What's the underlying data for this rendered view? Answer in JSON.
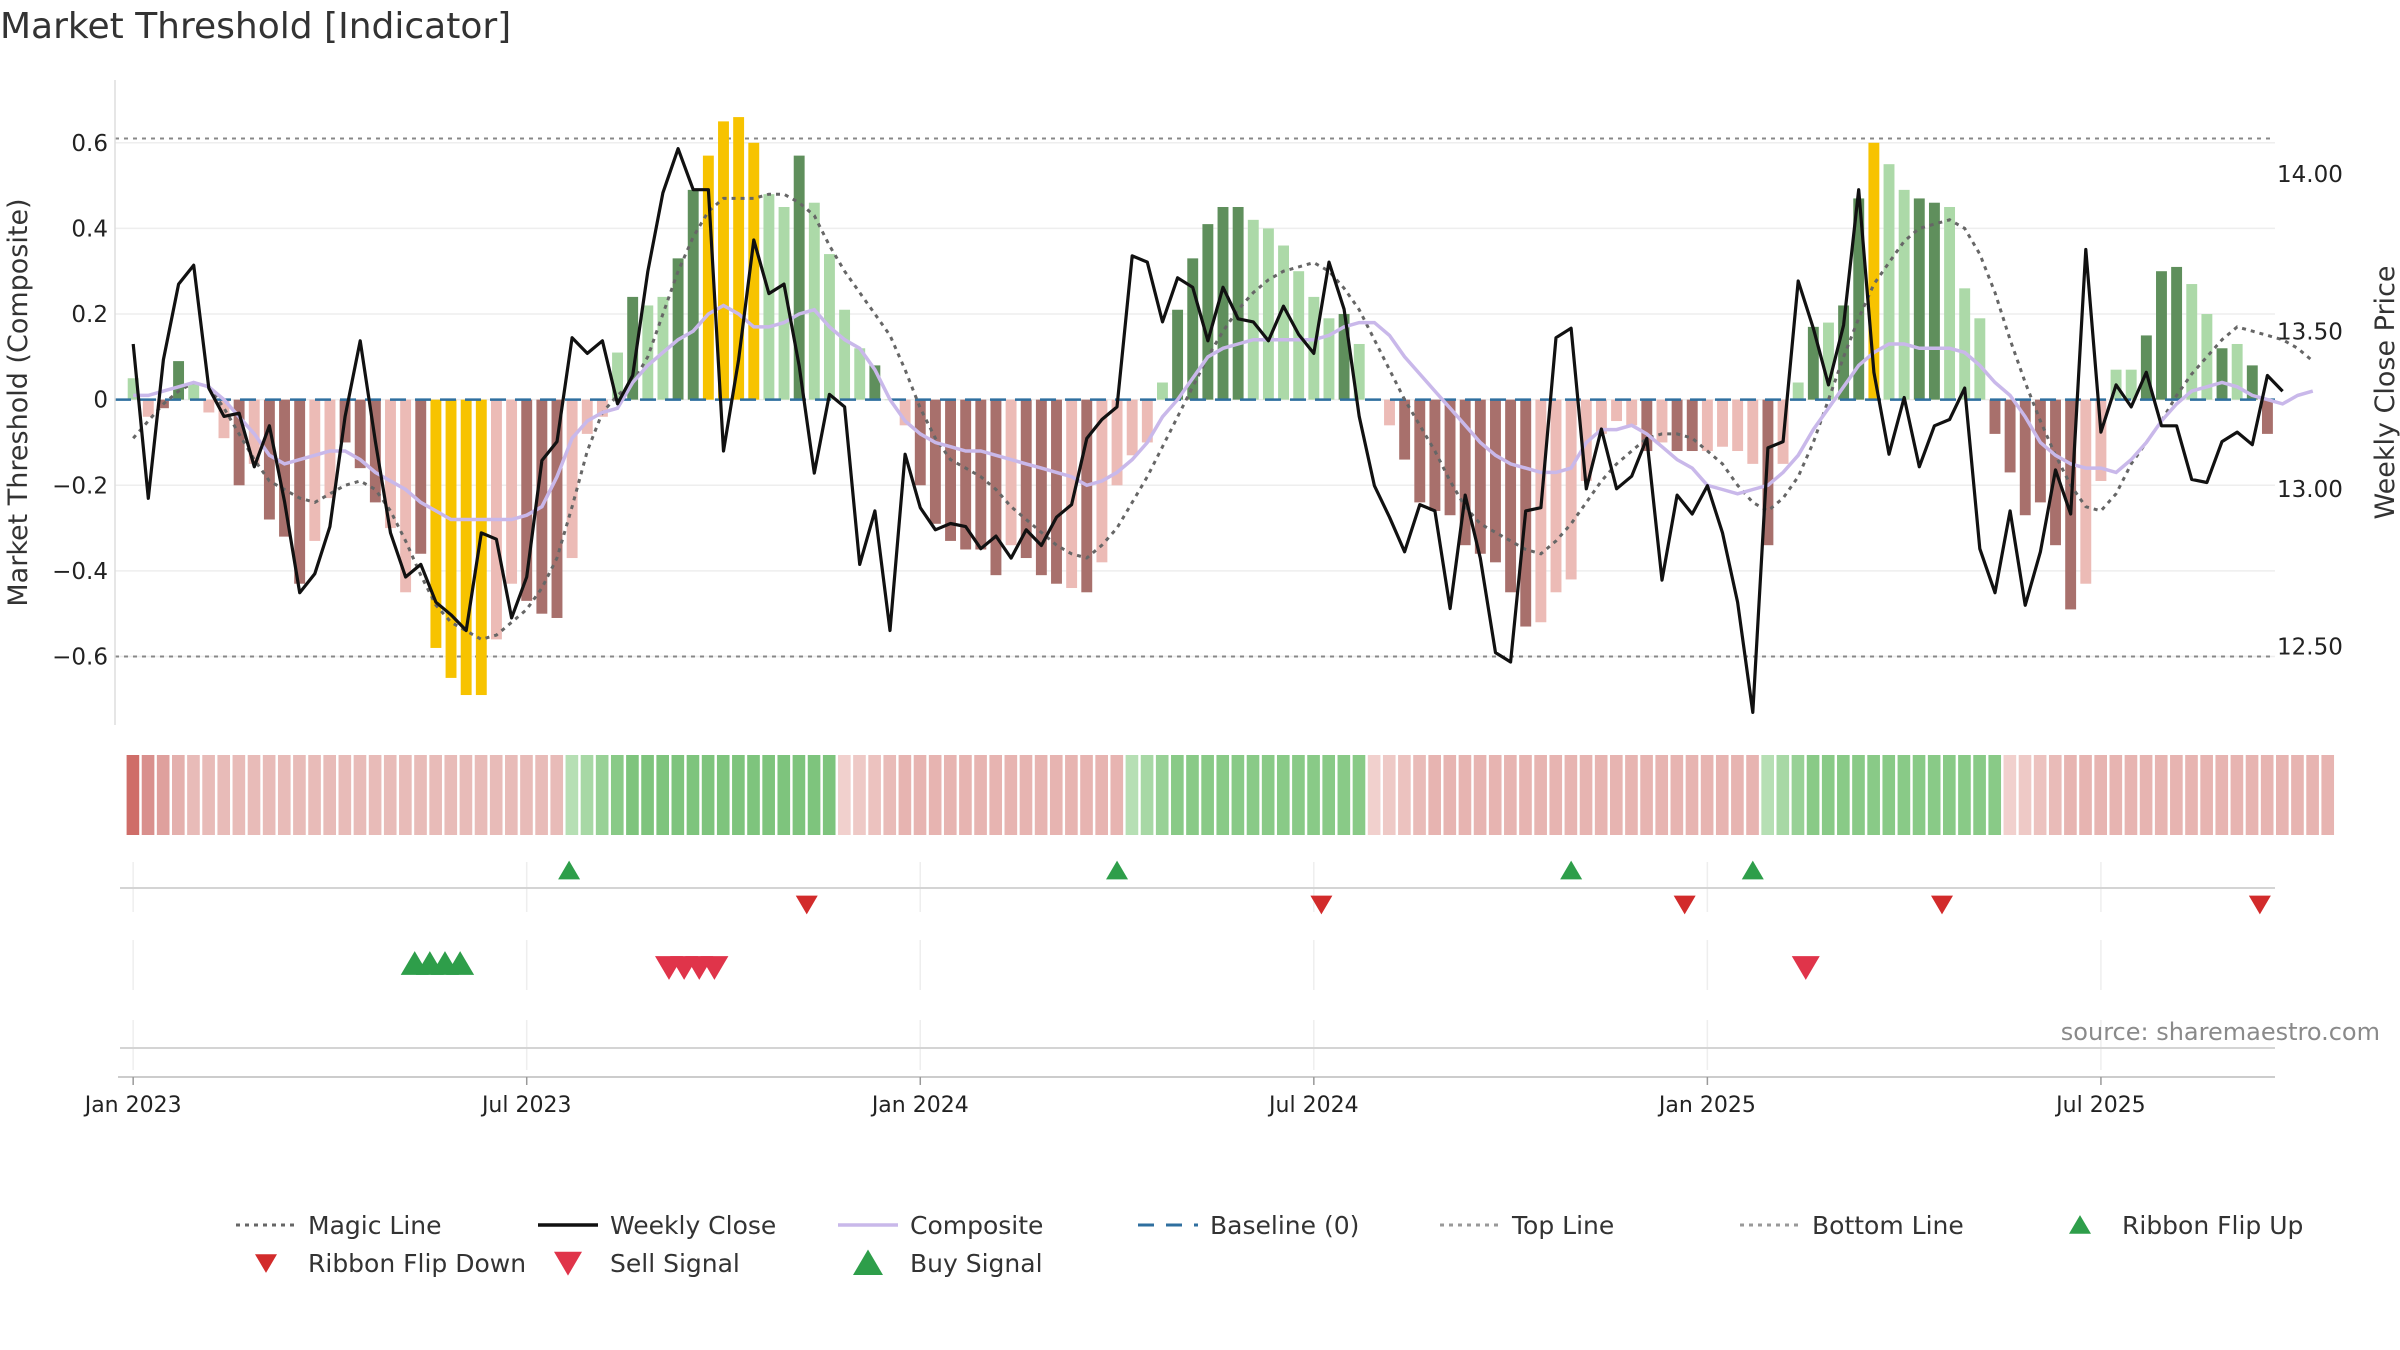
{
  "title": "Market Threshold [Indicator]",
  "source_note": "source: sharemaestro.com",
  "colors": {
    "magic": "#666666",
    "close": "#111111",
    "composite": "#c9b8ea",
    "baseline": "#2f6f9f",
    "threshold": "#888888",
    "flip_up": "#2e9e4a",
    "flip_down": "#d22b2b",
    "sell": "#e0344a",
    "buy": "#2e9e4a",
    "extreme_bar": "#f7c300",
    "strong_pos": "#5f8f5c",
    "weak_pos": "#acd9a8",
    "strong_neg": "#a8706c",
    "weak_neg": "#ecbbb6"
  },
  "legend": [
    {
      "label": "Magic Line",
      "type": "dotted",
      "color": "#666666"
    },
    {
      "label": "Weekly Close",
      "type": "solid",
      "color": "#111111"
    },
    {
      "label": "Composite",
      "type": "solid",
      "color": "#c9b8ea"
    },
    {
      "label": "Baseline (0)",
      "type": "dashed",
      "color": "#2f6f9f"
    },
    {
      "label": "Top Line",
      "type": "dotted",
      "color": "#999999"
    },
    {
      "label": "Bottom Line",
      "type": "dotted",
      "color": "#999999"
    },
    {
      "label": "Ribbon Flip Up",
      "type": "tri-up",
      "color": "#2e9e4a"
    },
    {
      "label": "Ribbon Flip Down",
      "type": "tri-down",
      "color": "#d22b2b"
    },
    {
      "label": "Sell Signal",
      "type": "tri-down-big",
      "color": "#e0344a"
    },
    {
      "label": "Buy Signal",
      "type": "tri-up-big",
      "color": "#2e9e4a"
    }
  ],
  "chart_data": {
    "type": "bar",
    "title": "Market Threshold [Indicator]",
    "ylabel": "Market Threshold (Composite)",
    "y2label": "Weekly Close Price",
    "ylim": [
      -0.76,
      0.77
    ],
    "y2lim": [
      12.25,
      14.33
    ],
    "yticks": [
      0.6,
      0.4,
      0.2,
      0,
      -0.2,
      -0.4,
      -0.6
    ],
    "ytick_labels": [
      "0.6",
      "0.4",
      "0.2",
      "0",
      "−0.2",
      "−0.4",
      "−0.6"
    ],
    "y2ticks": [
      14.0,
      13.5,
      13.0,
      12.5
    ],
    "y2tick_labels": [
      "14.00",
      "13.50",
      "13.00",
      "12.50"
    ],
    "x_range_weeks": [
      -1.2,
      141.5
    ],
    "xticks": [
      {
        "label": "Jan 2023",
        "week": 0
      },
      {
        "label": "Jul 2023",
        "week": 26
      },
      {
        "label": "Jan 2024",
        "week": 52
      },
      {
        "label": "Jul 2024",
        "week": 78
      },
      {
        "label": "Jan 2025",
        "week": 104
      },
      {
        "label": "Jul 2025",
        "week": 130
      }
    ],
    "top_line": 0.61,
    "bottom_line": -0.6,
    "composite_bars": [
      0.05,
      -0.04,
      -0.02,
      0.09,
      0.04,
      -0.03,
      -0.09,
      -0.2,
      -0.15,
      -0.28,
      -0.32,
      -0.43,
      -0.33,
      -0.23,
      -0.1,
      -0.16,
      -0.24,
      -0.3,
      -0.45,
      -0.36,
      -0.58,
      -0.65,
      -0.69,
      -0.69,
      -0.56,
      -0.43,
      -0.47,
      -0.5,
      -0.51,
      -0.37,
      -0.08,
      -0.04,
      0.11,
      0.24,
      0.22,
      0.24,
      0.33,
      0.49,
      0.57,
      0.65,
      0.66,
      0.6,
      0.48,
      0.45,
      0.57,
      0.46,
      0.34,
      0.21,
      0.12,
      0.08,
      0.0,
      -0.06,
      -0.2,
      -0.29,
      -0.33,
      -0.35,
      -0.35,
      -0.41,
      -0.34,
      -0.37,
      -0.41,
      -0.43,
      -0.44,
      -0.45,
      -0.38,
      -0.2,
      -0.13,
      -0.1,
      0.04,
      0.21,
      0.33,
      0.41,
      0.45,
      0.45,
      0.42,
      0.4,
      0.36,
      0.3,
      0.24,
      0.19,
      0.2,
      0.13,
      0.0,
      -0.06,
      -0.14,
      -0.24,
      -0.26,
      -0.27,
      -0.34,
      -0.36,
      -0.38,
      -0.45,
      -0.53,
      -0.52,
      -0.45,
      -0.42,
      -0.19,
      -0.08,
      -0.05,
      -0.06,
      -0.12,
      -0.1,
      -0.12,
      -0.12,
      -0.12,
      -0.11,
      -0.12,
      -0.15,
      -0.34,
      -0.15,
      0.04,
      0.17,
      0.18,
      0.22,
      0.47,
      0.6,
      0.55,
      0.49,
      0.47,
      0.46,
      0.45,
      0.26,
      0.19,
      -0.08,
      -0.17,
      -0.27,
      -0.24,
      -0.34,
      -0.49,
      -0.43,
      -0.19,
      0.07,
      0.07,
      0.15,
      0.3,
      0.31,
      0.27,
      0.2,
      0.12,
      0.13,
      0.08,
      -0.08
    ],
    "bar_styles": [
      "weak_pos",
      "weak_neg",
      "strong_neg",
      "strong_pos",
      "weak_pos",
      "weak_neg",
      "weak_neg",
      "strong_neg",
      "weak_neg",
      "strong_neg",
      "strong_neg",
      "strong_neg",
      "weak_neg",
      "weak_neg",
      "strong_neg",
      "strong_neg",
      "strong_neg",
      "weak_neg",
      "weak_neg",
      "strong_neg",
      "extreme",
      "extreme",
      "extreme",
      "extreme",
      "weak_neg",
      "weak_neg",
      "strong_neg",
      "strong_neg",
      "strong_neg",
      "weak_neg",
      "weak_neg",
      "weak_neg",
      "weak_pos",
      "strong_pos",
      "weak_pos",
      "weak_pos",
      "strong_pos",
      "strong_pos",
      "extreme",
      "extreme",
      "extreme",
      "extreme",
      "weak_pos",
      "weak_pos",
      "strong_pos",
      "weak_pos",
      "weak_pos",
      "weak_pos",
      "weak_pos",
      "strong_pos",
      "weak_pos",
      "weak_neg",
      "strong_neg",
      "strong_neg",
      "strong_neg",
      "strong_neg",
      "strong_neg",
      "strong_neg",
      "weak_neg",
      "strong_neg",
      "strong_neg",
      "strong_neg",
      "weak_neg",
      "strong_neg",
      "weak_neg",
      "weak_neg",
      "weak_neg",
      "weak_neg",
      "weak_pos",
      "strong_pos",
      "strong_pos",
      "strong_pos",
      "strong_pos",
      "strong_pos",
      "weak_pos",
      "weak_pos",
      "weak_pos",
      "weak_pos",
      "weak_pos",
      "weak_pos",
      "strong_pos",
      "weak_pos",
      "weak_pos",
      "weak_neg",
      "strong_neg",
      "strong_neg",
      "strong_neg",
      "strong_neg",
      "strong_neg",
      "strong_neg",
      "strong_neg",
      "strong_neg",
      "strong_neg",
      "weak_neg",
      "weak_neg",
      "weak_neg",
      "weak_neg",
      "weak_neg",
      "weak_neg",
      "weak_neg",
      "strong_neg",
      "weak_neg",
      "strong_neg",
      "strong_neg",
      "weak_neg",
      "weak_neg",
      "weak_neg",
      "weak_neg",
      "strong_neg",
      "weak_neg",
      "weak_pos",
      "strong_pos",
      "weak_pos",
      "strong_pos",
      "strong_pos",
      "extreme",
      "weak_pos",
      "weak_pos",
      "strong_pos",
      "strong_pos",
      "weak_pos",
      "weak_pos",
      "weak_pos",
      "strong_neg",
      "strong_neg",
      "strong_neg",
      "strong_neg",
      "strong_neg",
      "strong_neg",
      "weak_neg",
      "weak_neg",
      "weak_pos",
      "weak_pos",
      "strong_pos",
      "strong_pos",
      "strong_pos",
      "weak_pos",
      "weak_pos",
      "strong_pos",
      "weak_pos",
      "strong_pos",
      "strong_neg"
    ],
    "composite_line": [
      0.01,
      0.01,
      0.02,
      0.03,
      0.04,
      0.03,
      0.0,
      -0.04,
      -0.08,
      -0.13,
      -0.15,
      -0.14,
      -0.13,
      -0.12,
      -0.12,
      -0.14,
      -0.17,
      -0.19,
      -0.21,
      -0.24,
      -0.26,
      -0.28,
      -0.28,
      -0.28,
      -0.28,
      -0.28,
      -0.27,
      -0.25,
      -0.18,
      -0.09,
      -0.05,
      -0.03,
      -0.02,
      0.04,
      0.08,
      0.11,
      0.14,
      0.16,
      0.2,
      0.22,
      0.2,
      0.17,
      0.17,
      0.18,
      0.2,
      0.21,
      0.17,
      0.14,
      0.12,
      0.07,
      0.0,
      -0.05,
      -0.08,
      -0.1,
      -0.11,
      -0.12,
      -0.12,
      -0.13,
      -0.14,
      -0.15,
      -0.16,
      -0.17,
      -0.18,
      -0.2,
      -0.19,
      -0.17,
      -0.14,
      -0.1,
      -0.04,
      0.0,
      0.05,
      0.1,
      0.12,
      0.13,
      0.14,
      0.14,
      0.14,
      0.14,
      0.14,
      0.15,
      0.17,
      0.18,
      0.18,
      0.15,
      0.1,
      0.06,
      0.02,
      -0.02,
      -0.06,
      -0.1,
      -0.13,
      -0.15,
      -0.16,
      -0.17,
      -0.17,
      -0.16,
      -0.1,
      -0.07,
      -0.07,
      -0.06,
      -0.08,
      -0.11,
      -0.14,
      -0.16,
      -0.2,
      -0.21,
      -0.22,
      -0.21,
      -0.2,
      -0.17,
      -0.13,
      -0.07,
      -0.02,
      0.03,
      0.08,
      0.11,
      0.13,
      0.13,
      0.12,
      0.12,
      0.12,
      0.11,
      0.08,
      0.04,
      0.01,
      -0.04,
      -0.1,
      -0.13,
      -0.15,
      -0.16,
      -0.16,
      -0.17,
      -0.14,
      -0.1,
      -0.05,
      -0.01,
      0.02,
      0.03,
      0.04,
      0.03,
      0.01,
      0.0,
      -0.01,
      0.01,
      0.02
    ],
    "magic_line": [
      -0.09,
      -0.05,
      -0.01,
      0.02,
      0.04,
      0.03,
      -0.02,
      -0.08,
      -0.14,
      -0.19,
      -0.21,
      -0.23,
      -0.24,
      -0.22,
      -0.2,
      -0.19,
      -0.21,
      -0.26,
      -0.33,
      -0.41,
      -0.48,
      -0.52,
      -0.54,
      -0.56,
      -0.55,
      -0.52,
      -0.49,
      -0.44,
      -0.37,
      -0.25,
      -0.12,
      -0.03,
      0.01,
      0.04,
      0.1,
      0.2,
      0.3,
      0.38,
      0.44,
      0.47,
      0.47,
      0.47,
      0.48,
      0.48,
      0.46,
      0.43,
      0.36,
      0.3,
      0.25,
      0.2,
      0.15,
      0.07,
      -0.02,
      -0.09,
      -0.14,
      -0.16,
      -0.18,
      -0.21,
      -0.25,
      -0.28,
      -0.31,
      -0.34,
      -0.36,
      -0.37,
      -0.34,
      -0.3,
      -0.24,
      -0.18,
      -0.11,
      -0.04,
      0.03,
      0.1,
      0.16,
      0.21,
      0.25,
      0.28,
      0.3,
      0.31,
      0.32,
      0.3,
      0.26,
      0.21,
      0.14,
      0.07,
      0.0,
      -0.06,
      -0.12,
      -0.19,
      -0.25,
      -0.29,
      -0.31,
      -0.33,
      -0.35,
      -0.36,
      -0.33,
      -0.29,
      -0.24,
      -0.19,
      -0.15,
      -0.12,
      -0.09,
      -0.08,
      -0.08,
      -0.09,
      -0.12,
      -0.15,
      -0.2,
      -0.24,
      -0.26,
      -0.23,
      -0.18,
      -0.1,
      0.0,
      0.1,
      0.19,
      0.27,
      0.32,
      0.37,
      0.4,
      0.41,
      0.42,
      0.4,
      0.34,
      0.25,
      0.14,
      0.04,
      -0.05,
      -0.13,
      -0.2,
      -0.25,
      -0.26,
      -0.22,
      -0.15,
      -0.1,
      -0.05,
      0.01,
      0.06,
      0.1,
      0.14,
      0.17,
      0.16,
      0.15,
      0.14,
      0.12,
      0.09
    ],
    "weekly_close": [
      13.46,
      12.97,
      13.41,
      13.65,
      13.71,
      13.32,
      13.23,
      13.24,
      13.07,
      13.2,
      12.96,
      12.67,
      12.73,
      12.88,
      13.23,
      13.47,
      13.15,
      12.86,
      12.72,
      12.76,
      12.64,
      12.6,
      12.55,
      12.86,
      12.84,
      12.59,
      12.72,
      13.09,
      13.15,
      13.48,
      13.43,
      13.47,
      13.27,
      13.36,
      13.69,
      13.94,
      14.08,
      13.95,
      13.95,
      13.12,
      13.41,
      13.79,
      13.62,
      13.65,
      13.39,
      13.05,
      13.3,
      13.26,
      12.76,
      12.93,
      12.55,
      13.11,
      12.94,
      12.87,
      12.89,
      12.88,
      12.81,
      12.85,
      12.78,
      12.87,
      12.82,
      12.91,
      12.95,
      13.16,
      13.22,
      13.26,
      13.74,
      13.72,
      13.53,
      13.67,
      13.64,
      13.47,
      13.64,
      13.54,
      13.53,
      13.47,
      13.58,
      13.49,
      13.43,
      13.72,
      13.57,
      13.23,
      13.01,
      12.91,
      12.8,
      12.95,
      12.93,
      12.62,
      12.98,
      12.78,
      12.48,
      12.45,
      12.93,
      12.94,
      13.48,
      13.51,
      13.0,
      13.19,
      13.0,
      13.04,
      13.16,
      12.71,
      12.98,
      12.92,
      13.01,
      12.86,
      12.64,
      12.29,
      13.13,
      13.15,
      13.66,
      13.51,
      13.33,
      13.52,
      13.95,
      13.37,
      13.11,
      13.29,
      13.07,
      13.2,
      13.22,
      13.32,
      12.81,
      12.67,
      12.93,
      12.63,
      12.8,
      13.06,
      12.92,
      13.76,
      13.18,
      13.33,
      13.26,
      13.37,
      13.2,
      13.2,
      13.03,
      13.02,
      13.15,
      13.18,
      13.14,
      13.36,
      13.31
    ],
    "ribbon_tones": [
      "#cf6d68",
      "#d9908d",
      "#dfa09d",
      "#e4b0ad",
      "#e8bbb8",
      "#e8bbb8",
      "#e8bbb8",
      "#e8bbb8",
      "#e8bbb8",
      "#e8bbb8",
      "#e8bbb8",
      "#e8bbb8",
      "#e8bbb8",
      "#e8bbb8",
      "#e8bbb8",
      "#e8bbb8",
      "#e8bbb8",
      "#e8bbb8",
      "#e8bbb8",
      "#e8bbb8",
      "#e8bbb8",
      "#e8bbb8",
      "#e8bbb8",
      "#e8bbb8",
      "#e8bbb8",
      "#e8bbb8",
      "#e8bbb8",
      "#e8bbb8",
      "#e8bbb8",
      "#b6dfb4",
      "#a7d8a5",
      "#98d196",
      "#89ca87",
      "#7ec47d",
      "#7ec47d",
      "#7ec47d",
      "#7ec47d",
      "#7ec47d",
      "#7ec47d",
      "#7ec47d",
      "#7ec47d",
      "#7ec47d",
      "#7ec47d",
      "#7ec47d",
      "#7ec47d",
      "#7ec47d",
      "#7ec47d",
      "#f1d0cd",
      "#eec9c6",
      "#ecc2bf",
      "#e9bbb8",
      "#e7b4b1",
      "#e7b4b1",
      "#e7b4b1",
      "#e7b4b1",
      "#e7b4b1",
      "#e7b4b1",
      "#e7b4b1",
      "#e7b4b1",
      "#e7b4b1",
      "#e7b4b1",
      "#e7b4b1",
      "#e7b4b1",
      "#e7b4b1",
      "#e7b4b1",
      "#e7b4b1",
      "#b6dfb4",
      "#a7d8a5",
      "#98d196",
      "#89ca87",
      "#89ca87",
      "#89ca87",
      "#89ca87",
      "#89ca87",
      "#89ca87",
      "#89ca87",
      "#89ca87",
      "#89ca87",
      "#89ca87",
      "#89ca87",
      "#89ca87",
      "#89ca87",
      "#f1d0cd",
      "#eec9c6",
      "#ecc2bf",
      "#e9bbb8",
      "#e7b4b1",
      "#e7b4b1",
      "#e7b4b1",
      "#e7b4b1",
      "#e7b4b1",
      "#e7b4b1",
      "#e7b4b1",
      "#e7b4b1",
      "#e7b4b1",
      "#e7b4b1",
      "#e7b4b1",
      "#e7b4b1",
      "#e7b4b1",
      "#e7b4b1",
      "#e7b4b1",
      "#e7b4b1",
      "#e7b4b1",
      "#e7b4b1",
      "#e7b4b1",
      "#e7b4b1",
      "#e7b4b1",
      "#e7b4b1",
      "#b6dfb4",
      "#a7d8a5",
      "#98d196",
      "#89ca87",
      "#89ca87",
      "#89ca87",
      "#89ca87",
      "#89ca87",
      "#89ca87",
      "#89ca87",
      "#89ca87",
      "#89ca87",
      "#89ca87",
      "#89ca87",
      "#89ca87",
      "#89ca87",
      "#f1d0cd",
      "#eec9c6",
      "#ecc2bf",
      "#e9bbb8",
      "#e7b4b1",
      "#e7b4b1",
      "#e7b4b1",
      "#e7b4b1",
      "#e7b4b1",
      "#e7b4b1",
      "#e7b4b1",
      "#e7b4b1",
      "#e7b4b1",
      "#e7b4b1",
      "#e7b4b1",
      "#e7b4b1",
      "#e7b4b1",
      "#e7b4b1",
      "#e7b4b1",
      "#e7b4b1",
      "#e7b4b1",
      "#e7b4b1"
    ],
    "ribbon_flip_up_weeks": [
      28.8,
      65,
      95,
      107
    ],
    "ribbon_flip_down_weeks": [
      44.5,
      78.5,
      102.5,
      119.5,
      140.5
    ],
    "buy_signal_weeks": [
      18.6,
      19.6,
      20.6,
      21.6
    ],
    "sell_signal_weeks": [
      35.4,
      36.4,
      37.4,
      38.4
    ],
    "sell_signal_weeks_2": [
      110.5
    ]
  }
}
